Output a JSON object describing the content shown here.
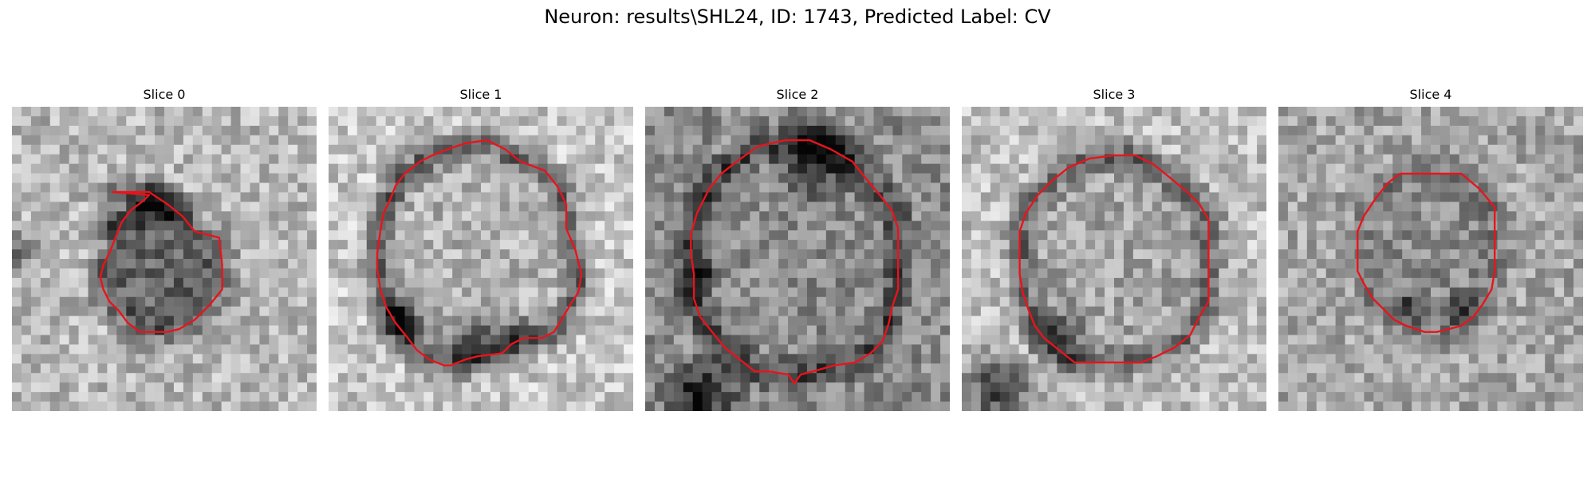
{
  "figure": {
    "title": "Neuron: results\\SHL24, ID: 1743, Predicted Label: CV"
  },
  "style": {
    "contour_color": "#e8141c"
  },
  "slices": [
    {
      "title": "Slice 0",
      "contour": [
        [
          0.33,
          0.28
        ],
        [
          0.45,
          0.28
        ],
        [
          0.51,
          0.32
        ],
        [
          0.56,
          0.36
        ],
        [
          0.6,
          0.41
        ],
        [
          0.68,
          0.43
        ],
        [
          0.69,
          0.52
        ],
        [
          0.69,
          0.6
        ],
        [
          0.65,
          0.65
        ],
        [
          0.6,
          0.7
        ],
        [
          0.55,
          0.73
        ],
        [
          0.51,
          0.74
        ],
        [
          0.46,
          0.74
        ],
        [
          0.42,
          0.74
        ],
        [
          0.38,
          0.71
        ],
        [
          0.35,
          0.67
        ],
        [
          0.32,
          0.64
        ],
        [
          0.3,
          0.6
        ],
        [
          0.29,
          0.56
        ],
        [
          0.3,
          0.52
        ],
        [
          0.32,
          0.48
        ],
        [
          0.34,
          0.43
        ],
        [
          0.36,
          0.38
        ],
        [
          0.39,
          0.34
        ],
        [
          0.43,
          0.31
        ],
        [
          0.45,
          0.29
        ]
      ],
      "bright": 0.72,
      "ring": 0.32,
      "interior": 0.4,
      "dark_blobs": [
        [
          0.02,
          0.48,
          0.05,
          0.4
        ],
        [
          0.45,
          0.32,
          0.06,
          0.4
        ],
        [
          0.55,
          0.34,
          0.05,
          0.3
        ],
        [
          0.33,
          0.38,
          0.05,
          0.3
        ]
      ]
    },
    {
      "title": "Slice 1",
      "contour": [
        [
          0.39,
          0.14
        ],
        [
          0.45,
          0.12
        ],
        [
          0.52,
          0.11
        ],
        [
          0.58,
          0.14
        ],
        [
          0.63,
          0.18
        ],
        [
          0.71,
          0.21
        ],
        [
          0.75,
          0.26
        ],
        [
          0.78,
          0.32
        ],
        [
          0.78,
          0.4
        ],
        [
          0.81,
          0.47
        ],
        [
          0.83,
          0.55
        ],
        [
          0.82,
          0.61
        ],
        [
          0.8,
          0.64
        ],
        [
          0.77,
          0.69
        ],
        [
          0.74,
          0.74
        ],
        [
          0.7,
          0.76
        ],
        [
          0.64,
          0.76
        ],
        [
          0.6,
          0.78
        ],
        [
          0.57,
          0.81
        ],
        [
          0.49,
          0.82
        ],
        [
          0.45,
          0.83
        ],
        [
          0.4,
          0.85
        ],
        [
          0.38,
          0.85
        ],
        [
          0.33,
          0.83
        ],
        [
          0.29,
          0.8
        ],
        [
          0.26,
          0.76
        ],
        [
          0.22,
          0.71
        ],
        [
          0.19,
          0.66
        ],
        [
          0.17,
          0.6
        ],
        [
          0.16,
          0.53
        ],
        [
          0.16,
          0.48
        ],
        [
          0.17,
          0.41
        ],
        [
          0.18,
          0.35
        ],
        [
          0.2,
          0.31
        ],
        [
          0.22,
          0.26
        ],
        [
          0.25,
          0.22
        ],
        [
          0.3,
          0.18
        ],
        [
          0.34,
          0.16
        ]
      ],
      "bright": 0.78,
      "ring": 0.25,
      "interior": 0.7,
      "dark_blobs": [
        [
          0.24,
          0.7,
          0.08,
          0.45
        ],
        [
          0.48,
          0.77,
          0.09,
          0.4
        ],
        [
          0.61,
          0.76,
          0.06,
          0.3
        ]
      ]
    },
    {
      "title": "Slice 2",
      "contour": [
        [
          0.37,
          0.13
        ],
        [
          0.46,
          0.11
        ],
        [
          0.54,
          0.11
        ],
        [
          0.61,
          0.14
        ],
        [
          0.68,
          0.18
        ],
        [
          0.72,
          0.23
        ],
        [
          0.77,
          0.29
        ],
        [
          0.81,
          0.34
        ],
        [
          0.83,
          0.4
        ],
        [
          0.83,
          0.47
        ],
        [
          0.83,
          0.54
        ],
        [
          0.83,
          0.6
        ],
        [
          0.81,
          0.66
        ],
        [
          0.8,
          0.71
        ],
        [
          0.78,
          0.77
        ],
        [
          0.74,
          0.81
        ],
        [
          0.69,
          0.84
        ],
        [
          0.62,
          0.85
        ],
        [
          0.55,
          0.87
        ],
        [
          0.51,
          0.88
        ],
        [
          0.49,
          0.91
        ],
        [
          0.47,
          0.88
        ],
        [
          0.41,
          0.87
        ],
        [
          0.36,
          0.87
        ],
        [
          0.31,
          0.83
        ],
        [
          0.26,
          0.79
        ],
        [
          0.22,
          0.74
        ],
        [
          0.18,
          0.69
        ],
        [
          0.16,
          0.63
        ],
        [
          0.16,
          0.55
        ],
        [
          0.15,
          0.48
        ],
        [
          0.15,
          0.42
        ],
        [
          0.17,
          0.35
        ],
        [
          0.21,
          0.27
        ],
        [
          0.25,
          0.22
        ],
        [
          0.3,
          0.18
        ]
      ],
      "bright": 0.55,
      "ring": 0.15,
      "interior": 0.55,
      "dark_blobs": [
        [
          0.55,
          0.18,
          0.1,
          0.45
        ],
        [
          0.17,
          0.55,
          0.06,
          0.35
        ],
        [
          0.18,
          0.95,
          0.1,
          0.5
        ]
      ]
    },
    {
      "title": "Slice 3",
      "contour": [
        [
          0.42,
          0.17
        ],
        [
          0.5,
          0.16
        ],
        [
          0.57,
          0.16
        ],
        [
          0.63,
          0.19
        ],
        [
          0.68,
          0.23
        ],
        [
          0.74,
          0.28
        ],
        [
          0.78,
          0.32
        ],
        [
          0.81,
          0.37
        ],
        [
          0.81,
          0.44
        ],
        [
          0.81,
          0.51
        ],
        [
          0.81,
          0.58
        ],
        [
          0.81,
          0.64
        ],
        [
          0.78,
          0.69
        ],
        [
          0.75,
          0.75
        ],
        [
          0.7,
          0.79
        ],
        [
          0.64,
          0.82
        ],
        [
          0.59,
          0.84
        ],
        [
          0.51,
          0.84
        ],
        [
          0.45,
          0.84
        ],
        [
          0.37,
          0.84
        ],
        [
          0.32,
          0.8
        ],
        [
          0.27,
          0.76
        ],
        [
          0.24,
          0.72
        ],
        [
          0.22,
          0.67
        ],
        [
          0.2,
          0.61
        ],
        [
          0.19,
          0.55
        ],
        [
          0.19,
          0.48
        ],
        [
          0.19,
          0.41
        ],
        [
          0.21,
          0.35
        ],
        [
          0.25,
          0.29
        ],
        [
          0.3,
          0.24
        ],
        [
          0.35,
          0.2
        ]
      ],
      "bright": 0.75,
      "ring": 0.3,
      "interior": 0.65,
      "dark_blobs": [
        [
          0.12,
          0.93,
          0.1,
          0.55
        ],
        [
          0.32,
          0.75,
          0.08,
          0.35
        ]
      ]
    },
    {
      "title": "Slice 4",
      "contour": [
        [
          0.4,
          0.22
        ],
        [
          0.5,
          0.22
        ],
        [
          0.6,
          0.22
        ],
        [
          0.66,
          0.27
        ],
        [
          0.71,
          0.33
        ],
        [
          0.71,
          0.4
        ],
        [
          0.71,
          0.47
        ],
        [
          0.71,
          0.54
        ],
        [
          0.7,
          0.6
        ],
        [
          0.67,
          0.65
        ],
        [
          0.64,
          0.69
        ],
        [
          0.6,
          0.72
        ],
        [
          0.56,
          0.73
        ],
        [
          0.52,
          0.74
        ],
        [
          0.48,
          0.74
        ],
        [
          0.42,
          0.72
        ],
        [
          0.38,
          0.7
        ],
        [
          0.34,
          0.66
        ],
        [
          0.31,
          0.63
        ],
        [
          0.28,
          0.58
        ],
        [
          0.26,
          0.54
        ],
        [
          0.26,
          0.48
        ],
        [
          0.26,
          0.41
        ],
        [
          0.28,
          0.36
        ],
        [
          0.32,
          0.3
        ],
        [
          0.36,
          0.25
        ]
      ],
      "bright": 0.65,
      "ring": 0.45,
      "interior": 0.55,
      "dark_blobs": [
        [
          0.6,
          0.66,
          0.05,
          0.35
        ],
        [
          0.42,
          0.65,
          0.05,
          0.3
        ]
      ]
    }
  ]
}
